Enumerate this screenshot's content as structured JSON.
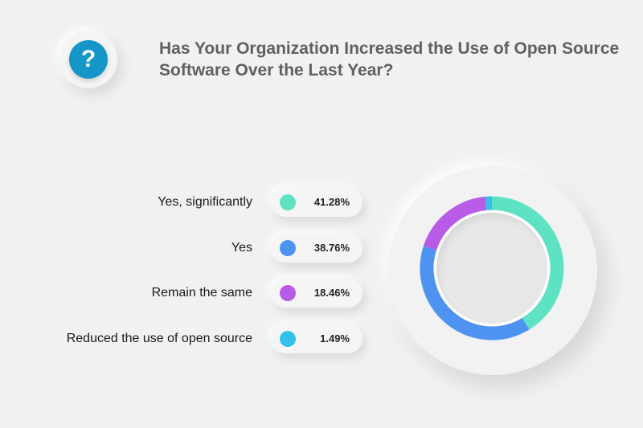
{
  "icon": {
    "glyph": "?",
    "name": "question-icon",
    "color": "#1595c8"
  },
  "title": "Has Your Organization Increased the Use of Open Source Software Over the Last Year?",
  "chart_data": {
    "type": "pie",
    "title": "Has Your Organization Increased the Use of Open Source Software Over the Last Year?",
    "categories": [
      "Yes, significantly",
      "Yes",
      "Remain the same",
      "Reduced the use of open source"
    ],
    "values": [
      41.28,
      38.76,
      18.46,
      1.49
    ],
    "value_labels": [
      "41.28%",
      "38.76%",
      "18.46%",
      "1.49%"
    ],
    "colors": [
      "#5de3c4",
      "#4e93f2",
      "#b85ce8",
      "#33c1ea"
    ],
    "legend_placement": "left",
    "donut": true
  }
}
